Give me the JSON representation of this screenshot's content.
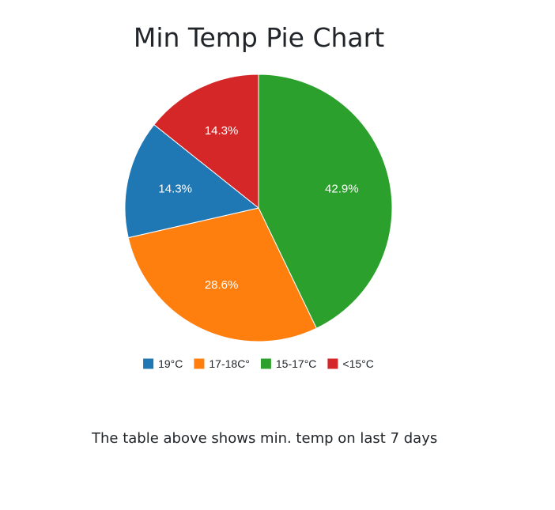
{
  "page": {
    "caption": "The table above shows min. temp on last 7 days"
  },
  "chart_data": {
    "type": "pie",
    "title": "Min Temp Pie Chart",
    "categories": [
      "19°C",
      "17-18C°",
      "15-17°C",
      "<15°C"
    ],
    "values": [
      14.3,
      28.6,
      42.9,
      14.3
    ],
    "labels": [
      "14.3%",
      "28.6%",
      "42.9%",
      "14.3%"
    ],
    "colors": [
      "#1f77b4",
      "#ff7f0e",
      "#2ca02c",
      "#d62728"
    ],
    "legend_position": "bottom",
    "slice_order": [
      "15-17°C",
      "17-18C°",
      "19°C",
      "<15°C"
    ],
    "direction": "clockwise from top"
  }
}
